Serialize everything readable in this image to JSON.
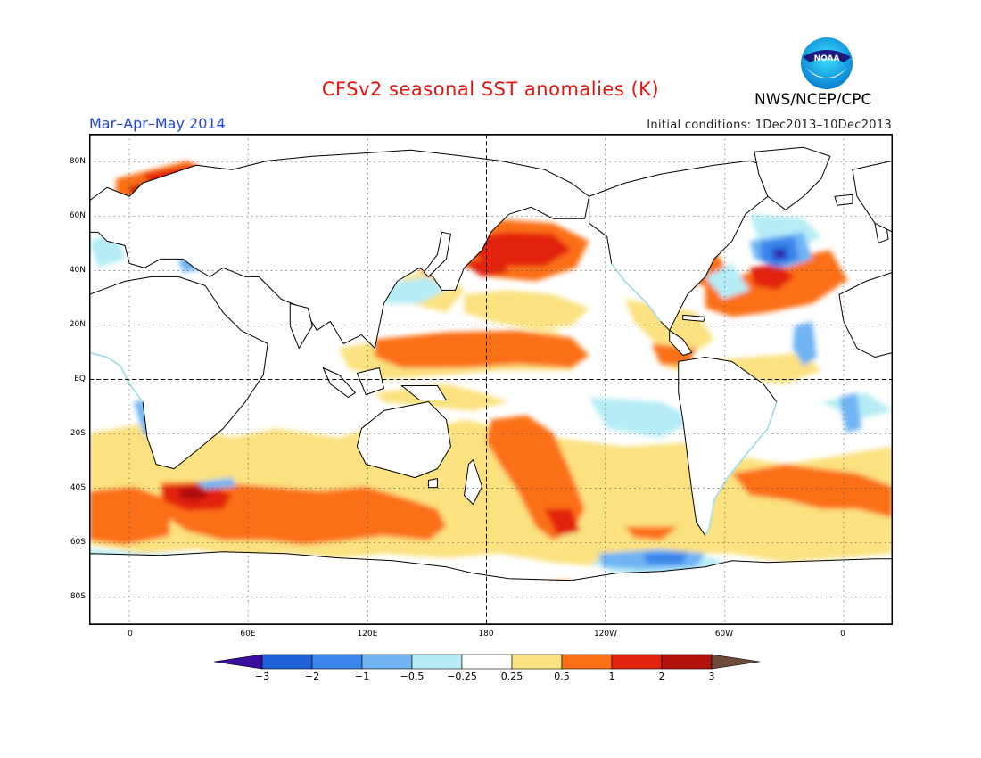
{
  "title": "CFSv2 seasonal SST anomalies (K)",
  "agency": "NWS/NCEP/CPC",
  "logo_text": "NOAA",
  "season": "Mar–Apr–May 2014",
  "initial_conditions": "Initial conditions: 1Dec2013–10Dec2013",
  "map": {
    "lat_labels": [
      "80N",
      "60N",
      "40N",
      "20N",
      "EQ",
      "20S",
      "40S",
      "60S",
      "80S"
    ],
    "lon_labels": [
      "0",
      "60E",
      "120E",
      "180",
      "120W",
      "60W",
      "0"
    ],
    "lat_values": [
      80,
      60,
      40,
      20,
      0,
      -20,
      -40,
      -60,
      -80
    ],
    "lon_values": [
      0,
      60,
      120,
      180,
      240,
      300,
      360
    ],
    "lon_range": [
      -20,
      370
    ],
    "lat_range": [
      -90,
      90
    ],
    "grid": "dotted",
    "colors": {
      "ocean": "#ffffff",
      "land": "#ffffff",
      "coast": "#000000"
    }
  },
  "legend": {
    "labels": [
      "−3",
      "−2",
      "−1",
      "−0.5",
      "−0.25",
      "0.25",
      "0.5",
      "1",
      "2",
      "3"
    ],
    "colors": [
      "#3a0fa0",
      "#1f5fd8",
      "#3a86ea",
      "#70b4f4",
      "#b5ecf6",
      "#ffffff",
      "#fbe17f",
      "#fb6f16",
      "#e3220f",
      "#b2110c",
      "#6e4a3b"
    ]
  }
}
